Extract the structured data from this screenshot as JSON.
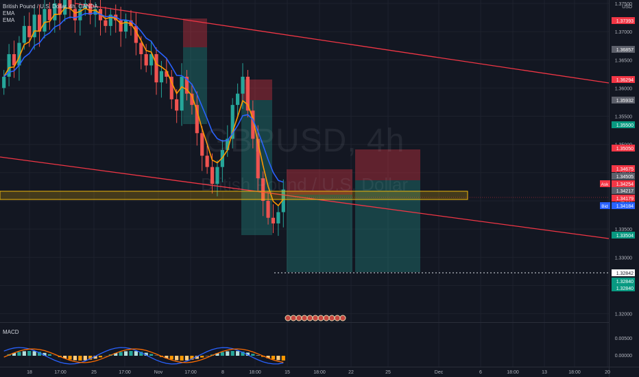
{
  "legend": {
    "symbol_line": "British Pound / U.S. Dollar, 4h, OANDA",
    "ema1": "EMA",
    "ema2": "EMA"
  },
  "watermark": {
    "symbol": "GBPUSD, 4h",
    "description": "British Pound / U.S. Dollar"
  },
  "macd_label": "MACD",
  "colors": {
    "background": "#131722",
    "bull": "#26a69a",
    "bear": "#ef5350",
    "trendline": "#f23645",
    "zone": "#f0b90b",
    "ema_blue": "#2962ff",
    "ema_orange": "#ff9800",
    "macd_line": "#2962ff",
    "signal_line": "#ff6d00"
  },
  "chart_data": {
    "type": "candlestick",
    "symbol": "GBPUSD",
    "timeframe": "4h",
    "price_axis": {
      "currency": "USD",
      "range": [
        1.3185,
        1.3756
      ],
      "ticks": [
        "1.37500",
        "1.37000",
        "1.36500",
        "1.36000",
        "1.35500",
        "1.35000",
        "1.34500",
        "1.34000",
        "1.33500",
        "1.33000",
        "1.32500",
        "1.32000"
      ]
    },
    "time_axis": {
      "labels": [
        "18",
        "17:00",
        "25",
        "17:00",
        "Nov",
        "17:00",
        "8",
        "18:00",
        "15",
        "18:00",
        "22",
        "25",
        "Dec",
        "6",
        "18:00",
        "13",
        "18:00",
        "20"
      ]
    },
    "price_tags": [
      {
        "value": "1.37393",
        "kind": "red"
      },
      {
        "value": "1.36857",
        "kind": "gray"
      },
      {
        "value": "1.36294",
        "kind": "red"
      },
      {
        "value": "1.35932",
        "kind": "gray"
      },
      {
        "value": "1.35500",
        "kind": "teal"
      },
      {
        "value": "1.35050",
        "kind": "red"
      },
      {
        "value": "1.34675",
        "kind": "red"
      },
      {
        "value": "1.34505",
        "kind": "gray"
      },
      {
        "value": "1.34254",
        "kind": "red",
        "label": "Ask"
      },
      {
        "value": "1.34217",
        "kind": "gray"
      },
      {
        "value": "1.34179",
        "kind": "red"
      },
      {
        "value": "1.34184",
        "kind": "blue",
        "label": "Bid"
      },
      {
        "value": "1.33504",
        "kind": "teal"
      },
      {
        "value": "1.32842",
        "kind": "white"
      },
      {
        "value": "1.32840",
        "kind": "teal"
      },
      {
        "value": "1.32840",
        "kind": "teal"
      }
    ],
    "closes": [
      1.362,
      1.366,
      1.364,
      1.368,
      1.371,
      1.369,
      1.373,
      1.37,
      1.374,
      1.372,
      1.375,
      1.373,
      1.376,
      1.374,
      1.372,
      1.374,
      1.375,
      1.373,
      1.374,
      1.372,
      1.371,
      1.373,
      1.372,
      1.37,
      1.372,
      1.371,
      1.368,
      1.366,
      1.364,
      1.366,
      1.361,
      1.363,
      1.362,
      1.358,
      1.356,
      1.362,
      1.359,
      1.357,
      1.352,
      1.348,
      1.346,
      1.343,
      1.346,
      1.349,
      1.351,
      1.357,
      1.359,
      1.362,
      1.356,
      1.351,
      1.344,
      1.34,
      1.337,
      1.336,
      1.338,
      1.342
    ],
    "ema_fast_note": "EMA",
    "ema_slow_note": "EMA",
    "macd_axis": {
      "ticks": [
        "0.00500",
        "0.00000"
      ]
    },
    "grid": true
  }
}
